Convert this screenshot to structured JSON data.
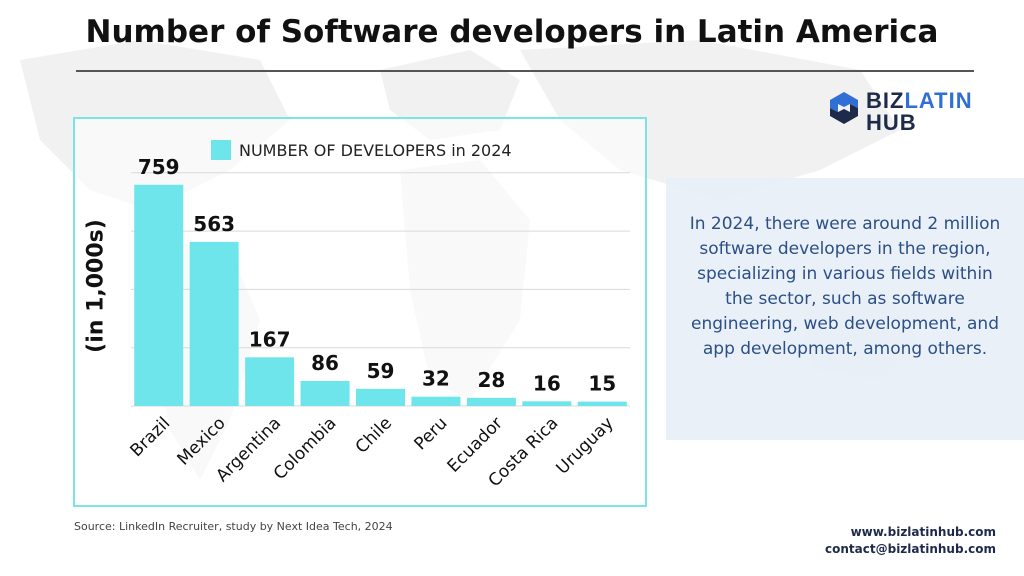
{
  "title": "Number of Software developers in Latin America",
  "logo": {
    "line1_a": "BIZ",
    "line1_b": "LATIN",
    "line2": "HUB"
  },
  "chart_data": {
    "type": "bar",
    "title": "",
    "categories": [
      "Brazil",
      "Mexico",
      "Argentina",
      "Colombia",
      "Chile",
      "Peru",
      "Ecuador",
      "Costa Rica",
      "Uruguay"
    ],
    "series": [
      {
        "name": "NUMBER OF DEVELOPERS in 2024",
        "values": [
          759,
          563,
          167,
          86,
          59,
          32,
          28,
          16,
          15
        ],
        "color": "#6ee5ea"
      }
    ],
    "ylabel": "(in 1,000s)",
    "xlabel": "",
    "ylim": [
      0,
      1000
    ],
    "grid": true,
    "legend": "top"
  },
  "info_text": "In 2024, there were around 2 million software developers in the region, specializing in various fields within the sector, such as software engineering, web development, and app development, among others.",
  "source": "Source: LinkedIn Recruiter, study by Next Idea Tech, 2024",
  "contact": {
    "website": "www.bizlatinhub.com",
    "email": "contact@bizlatinhub.com"
  },
  "colors": {
    "bar": "#6ee5ea",
    "frame": "#7ee3e8",
    "info_text": "#2b4f86",
    "brand_dark": "#1e2a4a",
    "brand_blue": "#2f6fd6"
  }
}
